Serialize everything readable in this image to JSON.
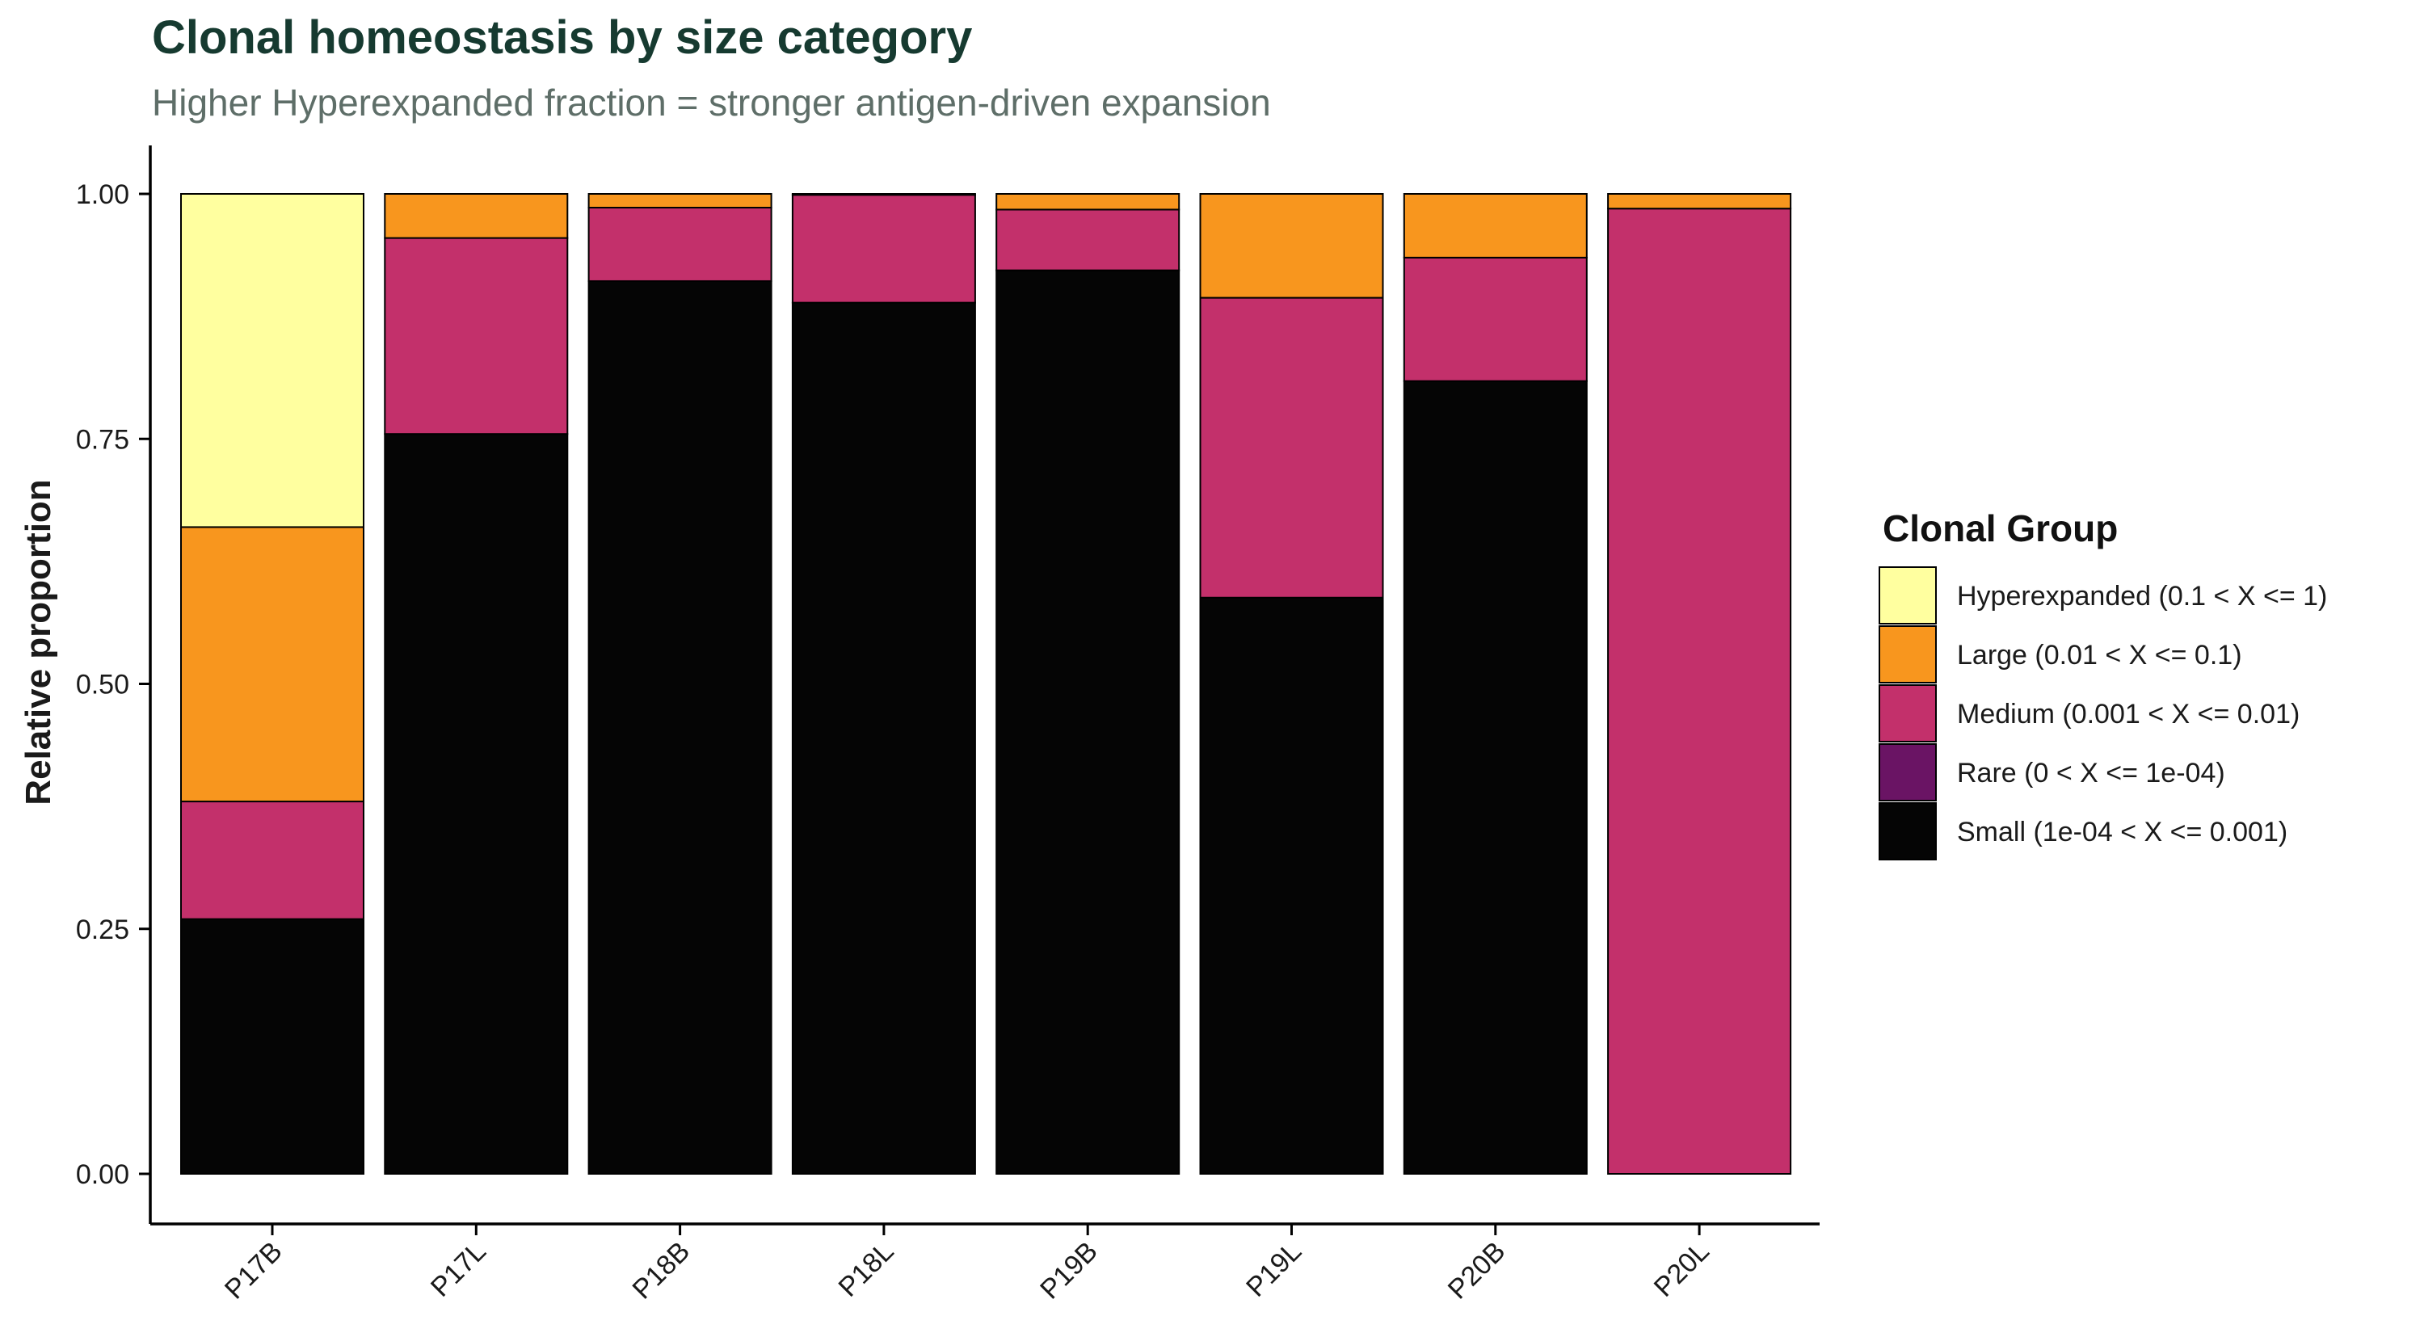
{
  "chart_data": {
    "type": "bar",
    "stacked": true,
    "title": "Clonal homeostasis by size category",
    "subtitle": "Higher Hyperexpanded fraction = stronger antigen-driven expansion",
    "xlabel": "",
    "ylabel": "Relative proportion",
    "ylim": [
      0,
      1
    ],
    "yticks": [
      "0.00",
      "0.25",
      "0.50",
      "0.75",
      "1.00"
    ],
    "grid": false,
    "legend_position": "right",
    "legend_title": "Clonal Group",
    "categories": [
      "P17B",
      "P17L",
      "P18B",
      "P18L",
      "P19B",
      "P19L",
      "P20B",
      "P20L"
    ],
    "series": [
      {
        "name": "Hyperexpanded (0.1 < X <= 1)",
        "color": "#ffff9f",
        "values": [
          0.34,
          0,
          0,
          0,
          0,
          0,
          0,
          0
        ]
      },
      {
        "name": "Large (0.01 < X <= 0.1)",
        "color": "#f8961e",
        "values": [
          0.28,
          0.045,
          0.014,
          0.001,
          0.016,
          0.106,
          0.065,
          0.015
        ]
      },
      {
        "name": "Medium (0.001 < X <= 0.01)",
        "color": "#c3306b",
        "values": [
          0.12,
          0.2,
          0.075,
          0.11,
          0.062,
          0.306,
          0.126,
          0.985
        ]
      },
      {
        "name": "Rare (0 < X <= 1e-04)",
        "color": "#6a1464",
        "values": [
          0,
          0,
          0,
          0,
          0,
          0,
          0,
          0
        ]
      },
      {
        "name": "Small (1e-04 < X <= 0.001)",
        "color": "#050505",
        "values": [
          0.26,
          0.755,
          0.911,
          0.889,
          0.922,
          0.588,
          0.809,
          0
        ]
      }
    ],
    "stack_order_bottom_to_top": [
      "Small (1e-04 < X <= 0.001)",
      "Rare (0 < X <= 1e-04)",
      "Medium (0.001 < X <= 0.01)",
      "Large (0.01 < X <= 0.1)",
      "Hyperexpanded (0.1 < X <= 1)"
    ]
  }
}
